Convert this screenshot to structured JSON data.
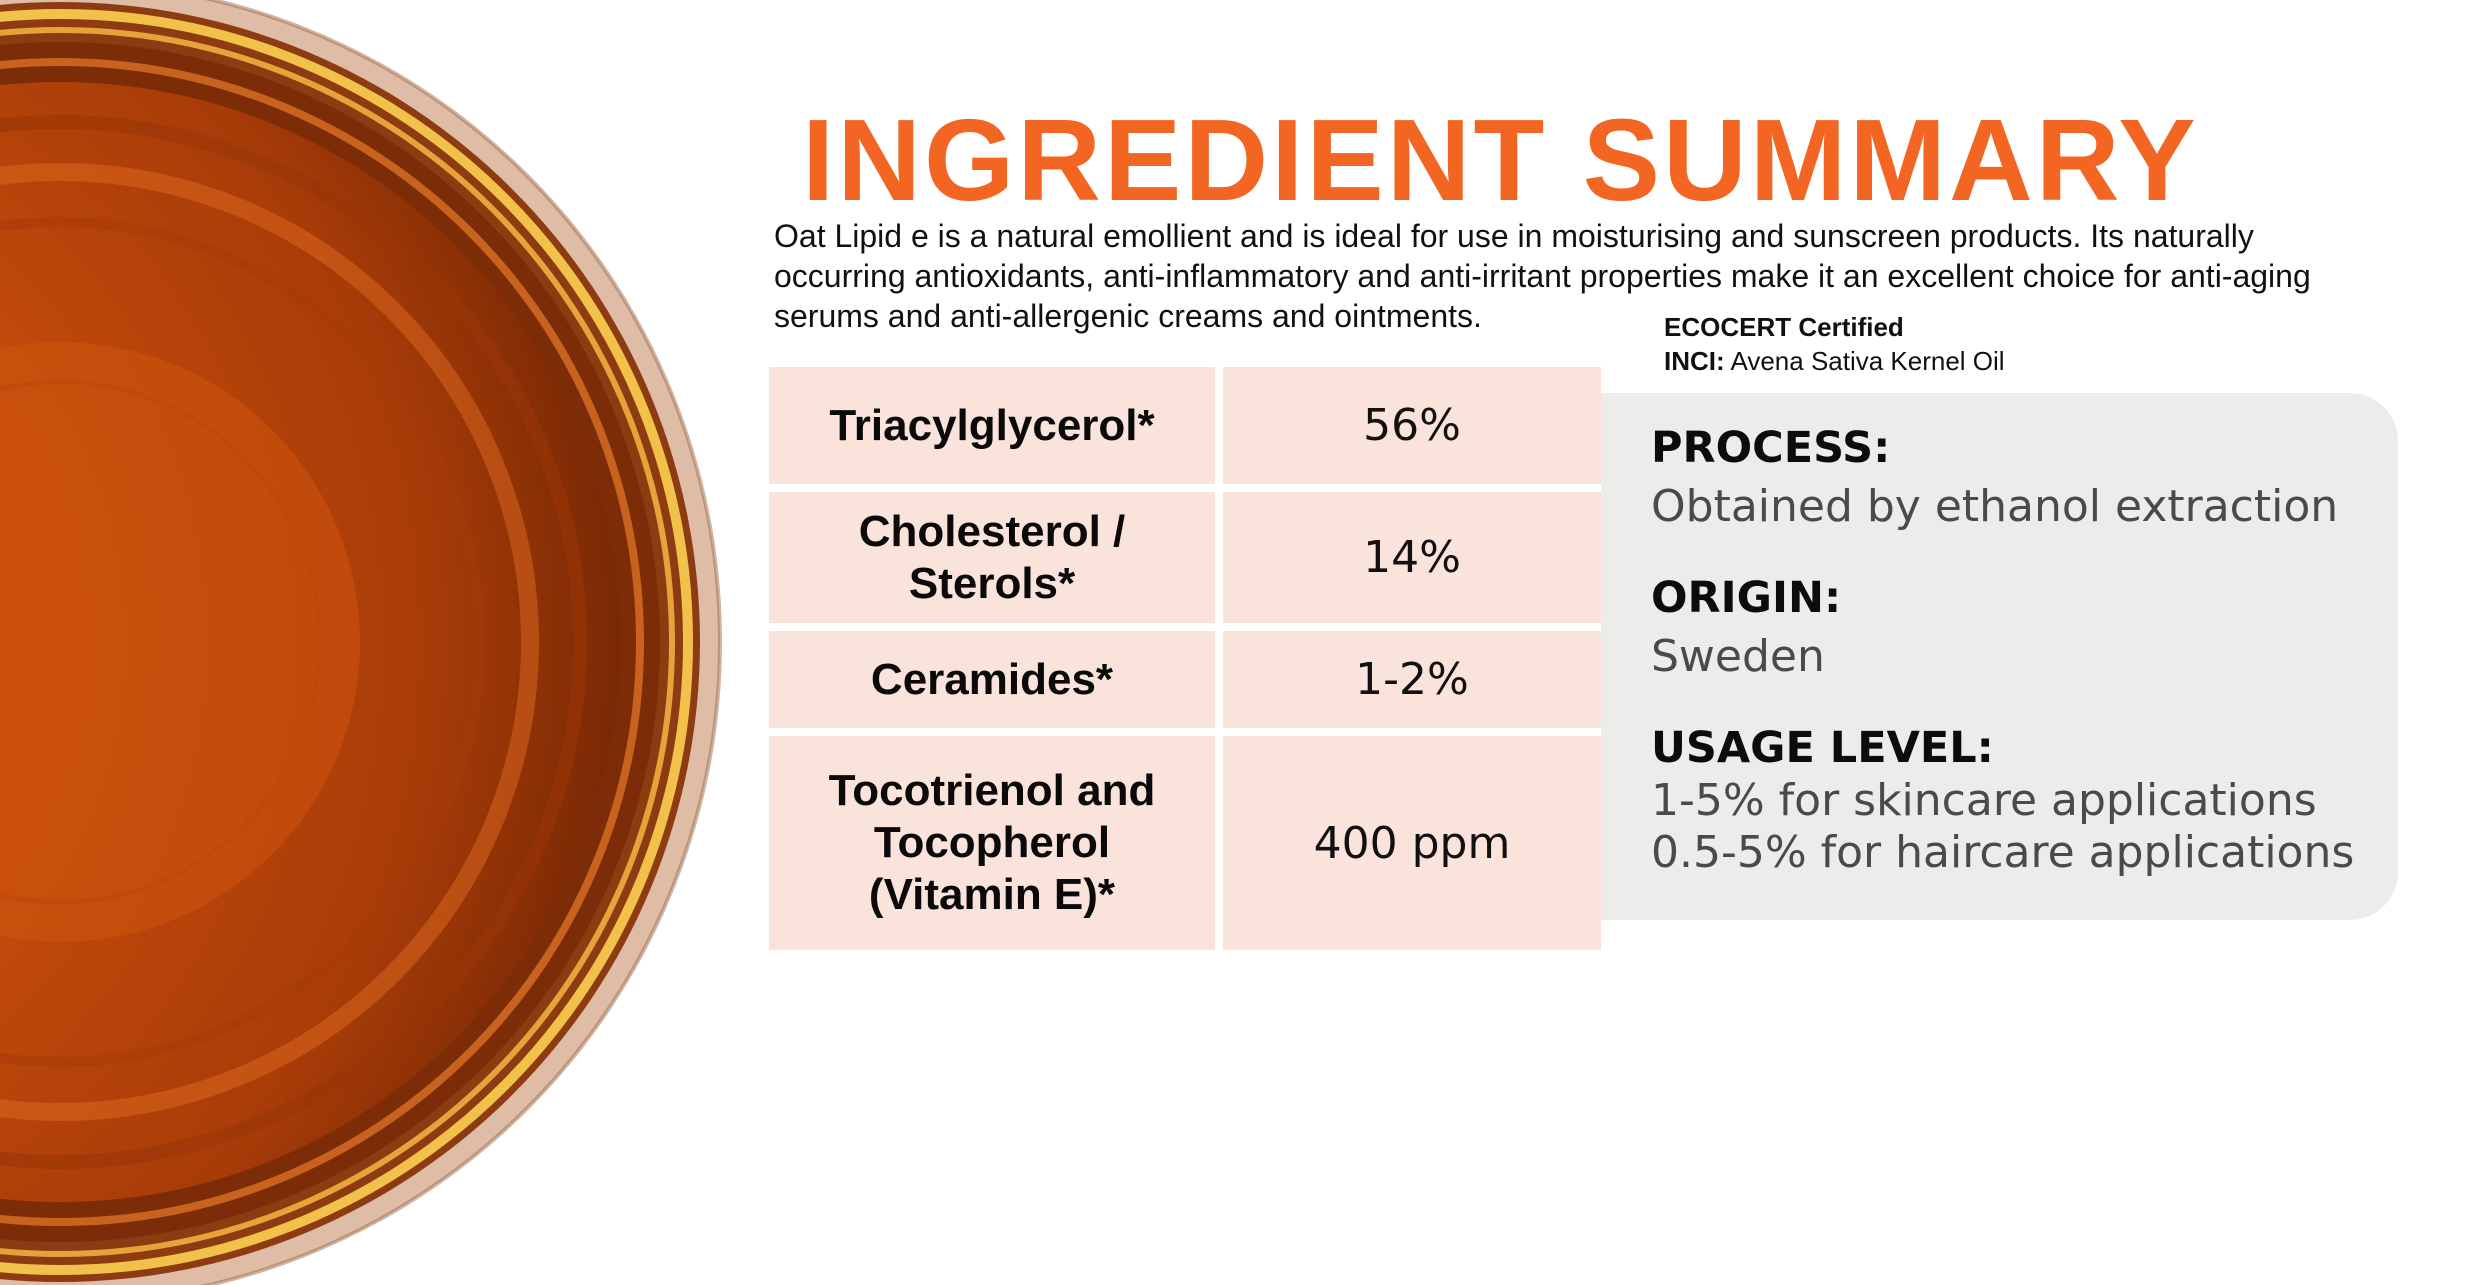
{
  "title": "INGREDIENT  SUMMARY",
  "intro": "Oat Lipid e is a natural emollient and is ideal for use in moisturising and sunscreen products. Its naturally occurring antioxidants, anti-inflammatory and anti-irritant properties make it an excellent choice for anti-aging serums and anti-allergenic creams and ointments.",
  "certification": {
    "ecocert": "ECOCERT Certified",
    "inci_label": "INCI:",
    "inci_value": "Avena Sativa Kernel Oil"
  },
  "composition": [
    {
      "name": "Triacylglycerol*",
      "value": "56%"
    },
    {
      "name": "Cholesterol /\nSterols*",
      "value": "14%"
    },
    {
      "name": "Ceramides*",
      "value": "1-2%"
    },
    {
      "name": "Tocotrienol and\nTocopherol\n(Vitamin E)*",
      "value": "400 ppm"
    }
  ],
  "details": {
    "process_label": "PROCESS:",
    "process_value": "Obtained by ethanol extraction",
    "origin_label": "ORIGIN:",
    "origin_value": "Sweden",
    "usage_label": "USAGE LEVEL:",
    "usage_skincare": "1-5% for skincare applications",
    "usage_haircare": "0.5-5% for haircare applications"
  },
  "colors": {
    "title": "#f26522",
    "table_cell": "#f9e3da",
    "panel": "#ececea"
  },
  "image": "amber oil in glass bowl (top view)"
}
